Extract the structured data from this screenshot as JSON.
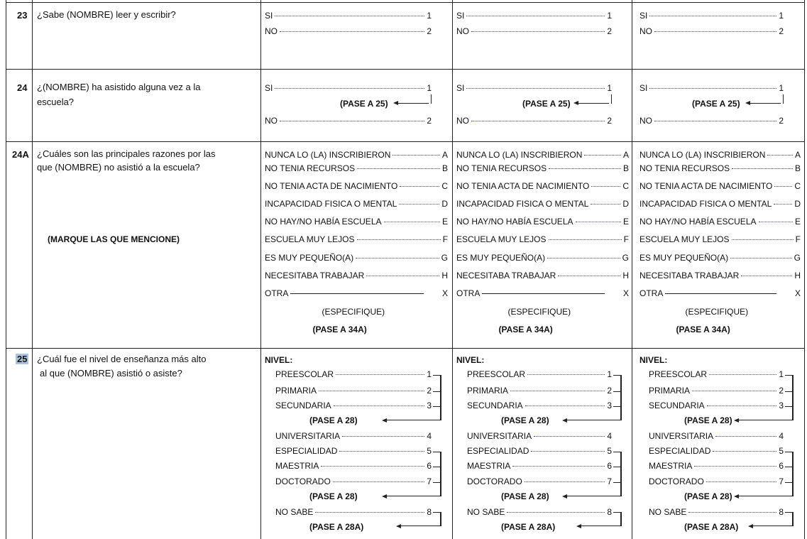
{
  "questions": [
    {
      "num": "23",
      "text": "¿Sabe (NOMBRE) leer y escribir?"
    },
    {
      "num": "24",
      "text_line1": "¿(NOMBRE) ha asistido alguna vez a la",
      "text_line2": "escuela?"
    },
    {
      "num": "24A",
      "text_line1": "¿Cuáles son las principales razones por las",
      "text_line2": "que (NOMBRE) no asistió a la escuela?",
      "instruction": "(MARQUE LAS QUE MENCIONE)"
    },
    {
      "num": "25",
      "text_line1": "¿Cuál fue el nivel de enseñanza más alto",
      "text_line2": "al que (NOMBRE) asistió o asiste?"
    }
  ],
  "q23_options": [
    {
      "label": "SI",
      "code": "1"
    },
    {
      "label": "NO",
      "code": "2"
    }
  ],
  "q24_options": [
    {
      "label": "SI",
      "code": "1"
    },
    {
      "label": "NO",
      "code": "2"
    }
  ],
  "q24_skip": "(PASE A 25)",
  "q24a_options": [
    {
      "label": "NUNCA LO (LA) INSCRIBIERON",
      "code": "A"
    },
    {
      "label": "NO TENIA RECURSOS",
      "code": "B"
    },
    {
      "label": "NO TENIA ACTA DE NACIMIENTO",
      "code": "C"
    },
    {
      "label": "INCAPACIDAD FISICA O MENTAL",
      "code": "D"
    },
    {
      "label": "NO HAY/NO HABÍA ESCUELA",
      "code": "E"
    },
    {
      "label": "ESCUELA MUY LEJOS",
      "code": "F"
    },
    {
      "label": "ES MUY PEQUEÑO(A)",
      "code": "G"
    },
    {
      "label": "NECESITABA TRABAJAR",
      "code": "H"
    },
    {
      "label": "OTRA",
      "code": "X"
    }
  ],
  "q24a_specify": "(ESPECIFIQUE)",
  "q24a_skip": "(PASE A 34A)",
  "q25_heading": "NIVEL:",
  "q25_options": [
    {
      "label": "PREESCOLAR",
      "code": "1"
    },
    {
      "label": "PRIMARIA",
      "code": "2"
    },
    {
      "label": "SECUNDARIA",
      "code": "3"
    },
    {
      "label": "UNIVERSITARIA",
      "code": "4"
    },
    {
      "label": "ESPECIALIDAD",
      "code": "5"
    },
    {
      "label": "MAESTRIA",
      "code": "6"
    },
    {
      "label": "DOCTORADO",
      "code": "7"
    },
    {
      "label": "NO SABE",
      "code": "8"
    }
  ],
  "q25_skips": [
    "(PASE A 28)",
    "(PASE A 28)",
    "(PASE A 28A)"
  ],
  "colors": {
    "highlight": "#a9c4dc",
    "lines": "#222222"
  }
}
